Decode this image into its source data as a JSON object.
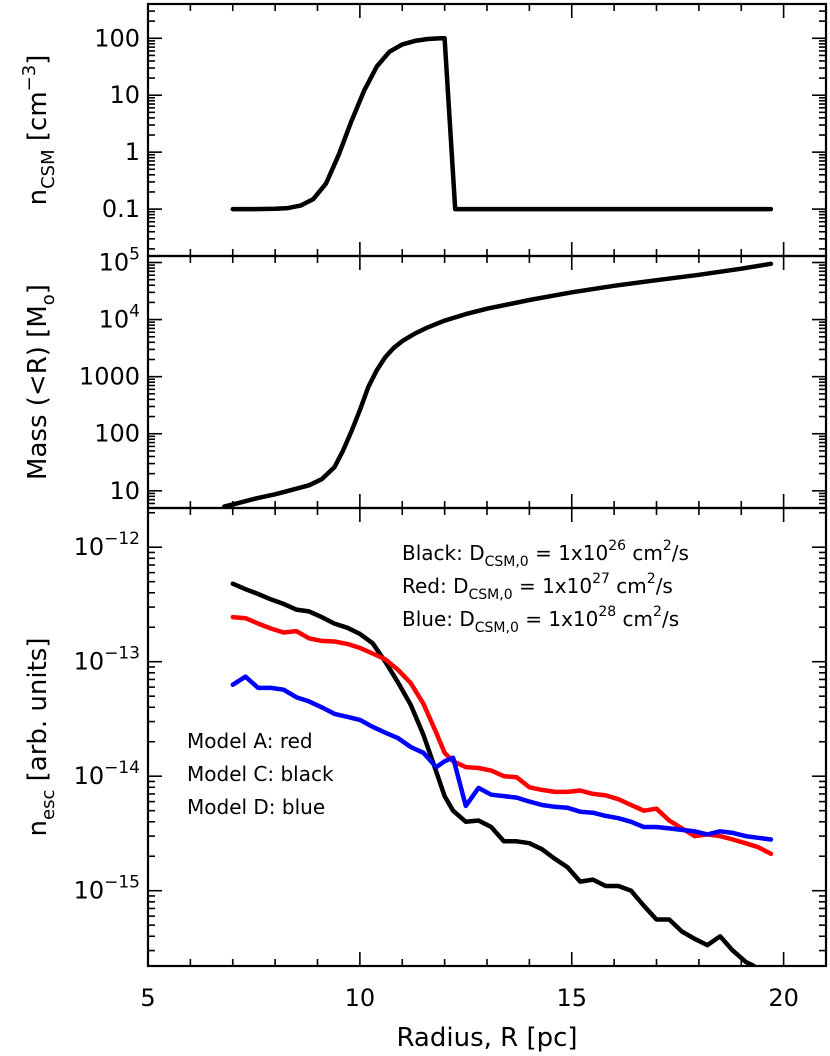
{
  "chart_data": [
    {
      "type": "line",
      "panel": "top",
      "ylabel": "n_CSM [cm^-3]",
      "ylabel_parts": {
        "base": "n",
        "sub": "CSM",
        "unit_pre": " [cm",
        "sup": "−3",
        "unit_post": "]"
      },
      "yscale": "log",
      "ylim": [
        0.015,
        400
      ],
      "xlim": [
        5,
        21
      ],
      "yticks": [
        {
          "v": 0.1,
          "label": "0.1"
        },
        {
          "v": 1,
          "label": "1"
        },
        {
          "v": 10,
          "label": "10"
        },
        {
          "v": 100,
          "label": "100"
        }
      ],
      "series": [
        {
          "color": "#000000",
          "x": [
            7.0,
            7.5,
            8.0,
            8.3,
            8.6,
            8.9,
            9.2,
            9.5,
            9.8,
            10.1,
            10.4,
            10.7,
            11.0,
            11.3,
            11.6,
            11.9,
            12.0,
            12.25,
            12.5,
            15.0,
            19.7
          ],
          "y": [
            0.1,
            0.1,
            0.101,
            0.104,
            0.115,
            0.15,
            0.28,
            0.9,
            3.5,
            12,
            32,
            58,
            78,
            90,
            97,
            100,
            100,
            0.1,
            0.1,
            0.1,
            0.1
          ]
        }
      ]
    },
    {
      "type": "line",
      "panel": "middle",
      "ylabel": "Mass (<R) [M_o]",
      "ylabel_parts": {
        "main": "Mass (<R) [M",
        "sub": "o",
        "post": "]"
      },
      "yscale": "log",
      "ylim": [
        5,
        130000
      ],
      "xlim": [
        5,
        21
      ],
      "yticks": [
        {
          "v": 10,
          "label": "10"
        },
        {
          "v": 100,
          "label": "100"
        },
        {
          "v": 1000,
          "label": "1000"
        },
        {
          "v": 10000,
          "label": "10",
          "sup": "4"
        },
        {
          "v": 100000,
          "label": "10",
          "sup": "5"
        }
      ],
      "series": [
        {
          "color": "#000000",
          "x": [
            6.8,
            7.2,
            7.6,
            8.0,
            8.4,
            8.8,
            9.1,
            9.4,
            9.6,
            9.8,
            10.0,
            10.2,
            10.4,
            10.6,
            10.8,
            11.0,
            11.3,
            11.6,
            12.0,
            12.5,
            13.0,
            14.0,
            15.0,
            16.0,
            17.0,
            18.0,
            19.0,
            19.7
          ],
          "y": [
            5.3,
            6.3,
            7.5,
            8.7,
            10.4,
            12.5,
            16,
            26,
            50,
            110,
            260,
            660,
            1300,
            2200,
            3200,
            4200,
            5700,
            7300,
            9600,
            12500,
            15500,
            22000,
            30000,
            39000,
            49000,
            61000,
            78000,
            95000
          ]
        }
      ]
    },
    {
      "type": "line",
      "panel": "bottom",
      "xlabel": "Radius, R [pc]",
      "ylabel": "n_esc [arb. units]",
      "ylabel_parts": {
        "base": "n",
        "sub": "esc",
        "post": " [arb. units]"
      },
      "yscale": "log",
      "ylim": [
        2.2e-16,
        2.2e-12
      ],
      "xlim": [
        5,
        21
      ],
      "xticks": [
        {
          "v": 5,
          "label": "5"
        },
        {
          "v": 10,
          "label": "10"
        },
        {
          "v": 15,
          "label": "15"
        },
        {
          "v": 20,
          "label": "20"
        }
      ],
      "yticks": [
        {
          "v": 1e-15,
          "label": "10",
          "sup": "−15"
        },
        {
          "v": 1e-14,
          "label": "10",
          "sup": "−14"
        },
        {
          "v": 1e-13,
          "label": "10",
          "sup": "−13"
        },
        {
          "v": 1e-12,
          "label": "10",
          "sup": "−12"
        }
      ],
      "annotations_top": [
        {
          "pre": "Black: D",
          "sub": "CSM,0",
          "mid": " = 1x10",
          "sup": "26",
          "unit": " cm",
          "unit_sup": "2",
          "post": "/s"
        },
        {
          "pre": "Red: D",
          "sub": "CSM,0",
          "mid": " = 1x10",
          "sup": "27",
          "unit": " cm",
          "unit_sup": "2",
          "post": "/s"
        },
        {
          "pre": "Blue: D",
          "sub": "CSM,0",
          "mid": " = 1x10",
          "sup": "28",
          "unit": " cm",
          "unit_sup": "2",
          "post": "/s"
        }
      ],
      "annotations_left": [
        "Model A: red",
        "Model C: black",
        "Model D: blue"
      ],
      "series": [
        {
          "color": "#000000",
          "x": [
            7.0,
            7.3,
            7.6,
            7.9,
            8.2,
            8.5,
            8.8,
            9.1,
            9.4,
            9.7,
            10.0,
            10.3,
            10.6,
            10.9,
            11.2,
            11.5,
            11.8,
            12.0,
            12.2,
            12.5,
            12.8,
            13.1,
            13.4,
            13.7,
            14.0,
            14.3,
            14.6,
            14.9,
            15.2,
            15.5,
            15.8,
            16.1,
            16.4,
            16.7,
            17.0,
            17.3,
            17.6,
            17.9,
            18.2,
            18.5,
            18.8,
            19.1,
            19.3
          ],
          "y": [
            4.8e-13,
            4.3e-13,
            3.9e-13,
            3.5e-13,
            3.2e-13,
            2.85e-13,
            2.75e-13,
            2.45e-13,
            2.15e-13,
            1.98e-13,
            1.75e-13,
            1.45e-13,
            1e-13,
            6.6e-14,
            4.2e-14,
            2.3e-14,
            1.1e-14,
            6.7e-15,
            5e-15,
            4e-15,
            4.1e-15,
            3.6e-15,
            2.7e-15,
            2.7e-15,
            2.6e-15,
            2.3e-15,
            1.9e-15,
            1.6e-15,
            1.2e-15,
            1.25e-15,
            1.1e-15,
            1.1e-15,
            1e-15,
            7.4e-16,
            5.6e-16,
            5.6e-16,
            4.4e-16,
            3.8e-16,
            3.35e-16,
            4e-16,
            3e-16,
            2.4e-16,
            2.2e-16
          ]
        },
        {
          "color": "#ff0000",
          "x": [
            7.0,
            7.3,
            7.6,
            7.9,
            8.2,
            8.5,
            8.8,
            9.1,
            9.4,
            9.7,
            10.0,
            10.3,
            10.6,
            10.9,
            11.2,
            11.5,
            11.8,
            12.0,
            12.2,
            12.5,
            12.8,
            13.1,
            13.4,
            13.7,
            14.0,
            14.3,
            14.6,
            14.9,
            15.2,
            15.5,
            15.8,
            16.1,
            16.4,
            16.7,
            17.0,
            17.3,
            17.6,
            17.9,
            18.2,
            18.5,
            18.8,
            19.1,
            19.4,
            19.7
          ],
          "y": [
            2.45e-13,
            2.4e-13,
            2.15e-13,
            1.95e-13,
            1.8e-13,
            1.85e-13,
            1.6e-13,
            1.52e-13,
            1.5e-13,
            1.43e-13,
            1.32e-13,
            1.18e-13,
            1.05e-13,
            8.5e-14,
            6.5e-14,
            4.3e-14,
            2.4e-14,
            1.6e-14,
            1.35e-14,
            1.2e-14,
            1.18e-14,
            1.12e-14,
            1e-14,
            9.8e-15,
            8e-15,
            7.6e-15,
            7.3e-15,
            7.3e-15,
            7.5e-15,
            7e-15,
            6.8e-15,
            6.3e-15,
            5.6e-15,
            5e-15,
            5.2e-15,
            4.1e-15,
            3.5e-15,
            3e-15,
            3.1e-15,
            3e-15,
            2.8e-15,
            2.6e-15,
            2.4e-15,
            2.1e-15
          ]
        },
        {
          "color": "#0000ff",
          "x": [
            7.0,
            7.3,
            7.6,
            7.9,
            8.2,
            8.5,
            8.8,
            9.1,
            9.4,
            9.7,
            10.0,
            10.3,
            10.6,
            10.9,
            11.2,
            11.5,
            11.8,
            12.0,
            12.2,
            12.5,
            12.8,
            13.1,
            13.4,
            13.7,
            14.0,
            14.3,
            14.6,
            14.9,
            15.2,
            15.5,
            15.8,
            16.1,
            16.4,
            16.7,
            17.0,
            17.3,
            17.6,
            17.9,
            18.2,
            18.5,
            18.8,
            19.1,
            19.4,
            19.7
          ],
          "y": [
            6.3e-14,
            7.4e-14,
            5.9e-14,
            5.9e-14,
            5.7e-14,
            4.9e-14,
            4.5e-14,
            4e-14,
            3.5e-14,
            3.3e-14,
            3.1e-14,
            2.7e-14,
            2.4e-14,
            2.15e-14,
            1.8e-14,
            1.6e-14,
            1.2e-14,
            1.35e-14,
            1.45e-14,
            5.5e-15,
            7.9e-15,
            6.9e-15,
            6.7e-15,
            6.5e-15,
            6e-15,
            5.6e-15,
            5.4e-15,
            5.3e-15,
            4.9e-15,
            4.8e-15,
            4.5e-15,
            4.3e-15,
            4e-15,
            3.6e-15,
            3.6e-15,
            3.5e-15,
            3.4e-15,
            3.3e-15,
            3.1e-15,
            3.3e-15,
            3.2e-15,
            3e-15,
            2.9e-15,
            2.8e-15
          ]
        }
      ]
    }
  ]
}
